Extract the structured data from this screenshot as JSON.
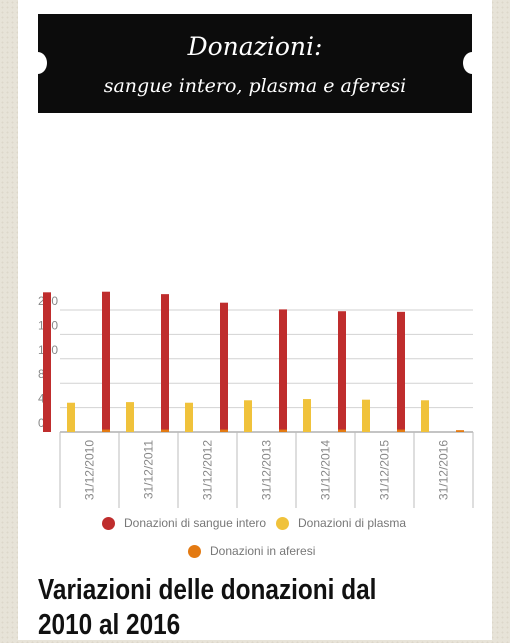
{
  "banner": {
    "title": "Donazioni:",
    "subtitle": "sangue intero, plasma e aferesi"
  },
  "chart_data": {
    "type": "bar",
    "categories": [
      "31/12/2010",
      "31/12/2011",
      "31/12/2012",
      "31/12/2013",
      "31/12/2014",
      "31/12/2015",
      "31/12/2016"
    ],
    "series": [
      {
        "name": "Donazioni di sangue intero",
        "color": "#bf2d2d",
        "values": [
          229,
          230,
          226,
          212,
          201,
          198,
          197
        ]
      },
      {
        "name": "Donazioni di plasma",
        "color": "#f0c23b",
        "values": [
          48,
          49,
          48,
          52,
          54,
          53,
          52
        ]
      },
      {
        "name": "Donazioni in aferesi",
        "color": "#e37a12",
        "values": [
          4,
          4,
          4,
          4,
          4,
          4,
          3
        ]
      }
    ],
    "ylim": [
      0,
      240
    ],
    "yticks": [
      0,
      40,
      80,
      120,
      160,
      200
    ],
    "grid": true,
    "legend": "bottom"
  },
  "article": {
    "title": "Variazioni delle donazioni dal 2010 al 2016"
  }
}
